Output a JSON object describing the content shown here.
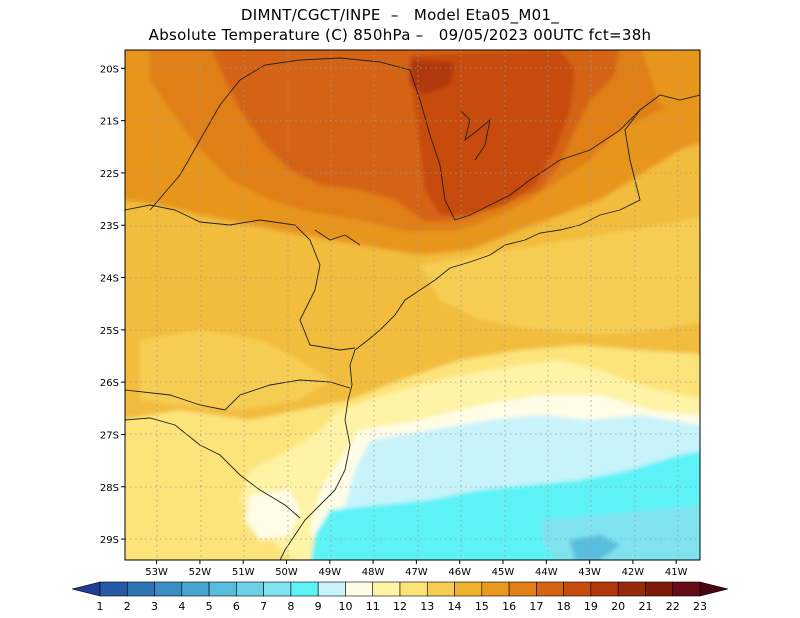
{
  "header": {
    "line1": "DIMNT/CGCT/INPE  –   Model Eta05_M01_",
    "line2": "Absolute Temperature (C) 850hPa –   09/05/2023 00UTC fct=38h"
  },
  "chart_data": {
    "type": "heatmap",
    "title": "Absolute Temperature (C) 850hPa",
    "model": "Eta05_M01_",
    "init_time": "09/05/2023 00UTC",
    "forecast_hour": "38h",
    "lon_range": [
      -53.8,
      -40.5
    ],
    "lat_range": [
      -29.4,
      -19.8
    ],
    "lat_ticks": [
      "20S",
      "21S",
      "22S",
      "23S",
      "24S",
      "25S",
      "26S",
      "27S",
      "28S",
      "29S"
    ],
    "lat_values": [
      -20,
      -21,
      -22,
      -23,
      -24,
      -25,
      -26,
      -27,
      -28,
      -29
    ],
    "lon_ticks": [
      "53W",
      "52W",
      "51W",
      "50W",
      "49W",
      "48W",
      "47W",
      "46W",
      "45W",
      "44W",
      "43W",
      "42W",
      "41W"
    ],
    "lon_values": [
      -53,
      -52,
      -51,
      -50,
      -49,
      -48,
      -47,
      -46,
      -45,
      -44,
      -43,
      -42,
      -41
    ],
    "colorbar": {
      "labels": [
        "1",
        "2",
        "3",
        "4",
        "5",
        "6",
        "7",
        "8",
        "9",
        "10",
        "11",
        "12",
        "13",
        "14",
        "15",
        "16",
        "17",
        "18",
        "19",
        "20",
        "21",
        "22",
        "23"
      ],
      "colors": [
        "#1f3d91",
        "#275aa6",
        "#2f74b5",
        "#3a8ec4",
        "#47a6d1",
        "#57bddc",
        "#6cd1e6",
        "#80e2ee",
        "#5cf2f6",
        "#c8f3fb",
        "#fffde6",
        "#fff3a6",
        "#fde47a",
        "#f6cd52",
        "#efb22a",
        "#e89a1e",
        "#e07f18",
        "#d56412",
        "#c64c0e",
        "#b0390a",
        "#962a0a",
        "#7d1c0a",
        "#650c18",
        "#4a0412"
      ]
    },
    "field_bands": [
      {
        "level": 12,
        "note": "pale cream bands in south-central area"
      },
      {
        "level": 11,
        "note": "light cyan near 27S-28S offshore"
      },
      {
        "level": 9,
        "note": "cyan over ocean south of 28S"
      },
      {
        "level": 19,
        "note": "warmest core over 20S-23S, 44W-48W"
      }
    ]
  }
}
